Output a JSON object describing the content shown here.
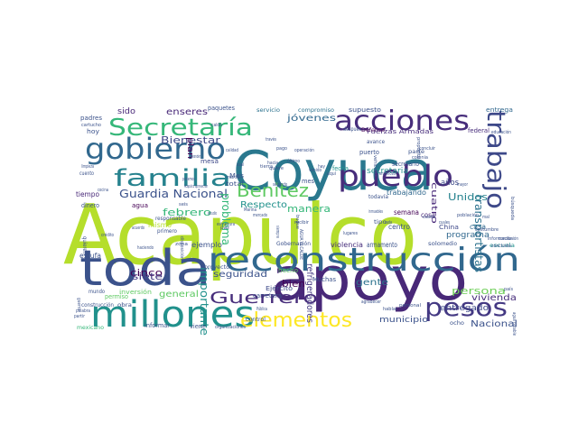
{
  "word_cloud": {
    "words": [
      {
        "text": "Acapulco",
        "color": "#b5de2b"
      },
      {
        "text": "Coyuca",
        "color": "#2a788e"
      },
      {
        "text": "apoyo",
        "color": "#482878"
      },
      {
        "text": "toda",
        "color": "#3b528b"
      },
      {
        "text": "reconstrucción",
        "color": "#31688e"
      },
      {
        "text": "millones",
        "color": "#21918c"
      },
      {
        "text": "Secretaría",
        "color": "#35b779"
      },
      {
        "text": "acciones",
        "color": "#472d7b"
      },
      {
        "text": "gobierno",
        "color": "#31688e"
      },
      {
        "text": "pueblo",
        "color": "#472d7b"
      },
      {
        "text": "familia",
        "color": "#26828e"
      },
      {
        "text": "trabajo",
        "color": "#3e4989"
      },
      {
        "text": "pesos",
        "color": "#443983"
      },
      {
        "text": "Guerrero",
        "color": "#472d7b"
      },
      {
        "text": "elementos",
        "color": "#fde725"
      },
      {
        "text": "Benitez",
        "color": "#5ec962"
      },
      {
        "text": "Guardia Nacional",
        "color": "#3b528b"
      },
      {
        "text": "Bienestar",
        "color": "#3e4989"
      },
      {
        "text": "jóvenes",
        "color": "#31688e"
      },
      {
        "text": "enseres",
        "color": "#482878"
      },
      {
        "text": "importante",
        "color": "#21918c"
      },
      {
        "text": "problema",
        "color": "#35b779"
      },
      {
        "text": "refrigeradores",
        "color": "#443983"
      },
      {
        "text": "transportistas",
        "color": "#2c728e"
      },
      {
        "text": "Respecto",
        "color": "#21918c"
      },
      {
        "text": "seguridad",
        "color": "#3b528b"
      },
      {
        "text": "persona",
        "color": "#6ece58"
      },
      {
        "text": "febrero",
        "color": "#35b779"
      },
      {
        "text": "cinco",
        "color": "#440154"
      },
      {
        "text": "siete",
        "color": "#443983"
      },
      {
        "text": "gente",
        "color": "#2c728e"
      },
      {
        "text": "bien",
        "color": "#440154"
      },
      {
        "text": "Unidos",
        "color": "#26828e"
      },
      {
        "text": "manera",
        "color": "#35b779"
      },
      {
        "text": "vivienda",
        "color": "#472d7b"
      },
      {
        "text": "Nacional",
        "color": "#3b528b"
      },
      {
        "text": "programa",
        "color": "#31688e"
      },
      {
        "text": "cuatro",
        "color": "#482878"
      },
      {
        "text": "años",
        "color": "#3e4989"
      },
      {
        "text": "secretaria",
        "color": "#21918c"
      },
      {
        "text": "general",
        "color": "#5ec962"
      },
      {
        "text": "plan",
        "color": "#440154"
      },
      {
        "text": "municipio",
        "color": "#3b528b"
      },
      {
        "text": "entregado",
        "color": "#3e4989"
      },
      {
        "text": "sido",
        "color": "#482878"
      },
      {
        "text": "paquetes",
        "color": "#3b528b"
      },
      {
        "text": "supuesto",
        "color": "#3b528b"
      },
      {
        "text": "compromiso",
        "color": "#2c728e"
      },
      {
        "text": "Fuerzas Armadas",
        "color": "#472d7b"
      },
      {
        "text": "entrega",
        "color": "#31688e"
      },
      {
        "text": "semana",
        "color": "#440154"
      },
      {
        "text": "Mes",
        "color": "#3b528b"
      },
      {
        "text": "mes",
        "color": "#3b528b"
      },
      {
        "text": "tiempo",
        "color": "#482878"
      },
      {
        "text": "agua",
        "color": "#440154"
      },
      {
        "text": "estufa",
        "color": "#3b528b"
      },
      {
        "text": "mismo",
        "color": "#b5de2b"
      },
      {
        "text": "total",
        "color": "#3b528b"
      },
      {
        "text": "mesa",
        "color": "#3e4989"
      },
      {
        "text": "armamento",
        "color": "#3b528b"
      },
      {
        "text": "violencia",
        "color": "#472d7b"
      },
      {
        "text": "casa",
        "color": "#31688e"
      },
      {
        "text": "cosa",
        "color": "#482878"
      },
      {
        "text": "centro",
        "color": "#3b528b"
      },
      {
        "text": "hecho",
        "color": "#5ec962"
      },
      {
        "text": "Muchas",
        "color": "#3b528b"
      },
      {
        "text": "carretera",
        "color": "#3b528b"
      },
      {
        "text": "Ejército",
        "color": "#3e4989"
      },
      {
        "text": "trabajando",
        "color": "#31688e"
      },
      {
        "text": "puerto",
        "color": "#3b528b"
      },
      {
        "text": "fecha",
        "color": "#21918c"
      },
      {
        "text": "secretario",
        "color": "#3b528b"
      },
      {
        "text": "Defensa",
        "color": "#440154"
      },
      {
        "text": "federal",
        "color": "#472d7b"
      },
      {
        "text": "ejemplo",
        "color": "#3b528b"
      },
      {
        "text": "padres",
        "color": "#3b528b"
      },
      {
        "text": "inversión",
        "color": "#5ec962"
      },
      {
        "text": "mundo",
        "color": "#3b528b"
      },
      {
        "text": "viene",
        "color": "#3b528b"
      },
      {
        "text": "informar",
        "color": "#3b528b"
      },
      {
        "text": "mexicano",
        "color": "#35b779"
      },
      {
        "text": "permiso",
        "color": "#5ec962"
      },
      {
        "text": "construcción",
        "color": "#3b528b"
      },
      {
        "text": "obra",
        "color": "#3b528b"
      },
      {
        "text": "control",
        "color": "#3b528b"
      },
      {
        "text": "ocho",
        "color": "#3b528b"
      },
      {
        "text": "medio",
        "color": "#3b528b"
      },
      {
        "text": "solo",
        "color": "#3b528b"
      },
      {
        "text": "Gobernación",
        "color": "#3b528b"
      },
      {
        "text": "dinero",
        "color": "#3b528b"
      },
      {
        "text": "hoy",
        "color": "#3b528b"
      },
      {
        "text": "servicio",
        "color": "#2c728e"
      },
      {
        "text": "después",
        "color": "#3b528b"
      },
      {
        "text": "China",
        "color": "#3e4989"
      },
      {
        "text": "tipo",
        "color": "#3b528b"
      },
      {
        "text": "parte",
        "color": "#3b528b"
      },
      {
        "text": "avance",
        "color": "#3b528b"
      },
      {
        "text": "último",
        "color": "#3b528b"
      },
      {
        "text": "todavía",
        "color": "#3b528b"
      },
      {
        "text": "escuela",
        "color": "#21918c"
      },
      {
        "text": "responsable",
        "color": "#3b528b"
      },
      {
        "text": "primero",
        "color": "#3b528b"
      },
      {
        "text": "quieren",
        "color": "#3b528b"
      },
      {
        "text": "cuento",
        "color": "#3b528b"
      },
      {
        "text": "proyecto",
        "color": "#3b528b"
      },
      {
        "text": "cartucho",
        "color": "#3b528b"
      },
      {
        "text": "seis",
        "color": "#3b528b"
      },
      {
        "text": "paz",
        "color": "#3b528b"
      },
      {
        "text": "marzo",
        "color": "#3b528b"
      },
      {
        "text": "pago",
        "color": "#3b528b"
      },
      {
        "text": "quiere",
        "color": "#3b528b"
      },
      {
        "text": "tierra",
        "color": "#3b528b"
      },
      {
        "text": "venido",
        "color": "#3b528b"
      },
      {
        "text": "personal",
        "color": "#3b528b"
      },
      {
        "text": "colonia",
        "color": "#3b528b"
      },
      {
        "text": "población",
        "color": "#3b528b"
      },
      {
        "text": "información",
        "color": "#3b528b"
      },
      {
        "text": "concluida",
        "color": "#3b528b"
      },
      {
        "text": "país",
        "color": "#3b528b"
      },
      {
        "text": "agradecer",
        "color": "#3b528b"
      },
      {
        "text": "hablar",
        "color": "#3b528b"
      },
      {
        "text": "palabra",
        "color": "#3b528b"
      },
      {
        "text": "partir",
        "color": "#3b528b"
      },
      {
        "text": "guerra",
        "color": "#3b528b"
      },
      {
        "text": "organizaciones",
        "color": "#3b528b"
      },
      {
        "text": "haciendo",
        "color": "#3b528b"
      },
      {
        "text": "calidad",
        "color": "#3b528b"
      },
      {
        "text": "siempre",
        "color": "#3b528b"
      },
      {
        "text": "recibir",
        "color": "#3b528b"
      },
      {
        "text": "entonces",
        "color": "#3b528b"
      },
      {
        "text": "concluir",
        "color": "#3b528b"
      },
      {
        "text": "segundo",
        "color": "#3b528b"
      },
      {
        "text": "estudio",
        "color": "#3b528b"
      },
      {
        "text": "zona",
        "color": "#3b528b"
      },
      {
        "text": "atender",
        "color": "#3b528b"
      },
      {
        "text": "hacia",
        "color": "#3b528b"
      },
      {
        "text": "costo",
        "color": "#3b528b"
      },
      {
        "text": "Marina",
        "color": "#3b528b"
      },
      {
        "text": "Pública",
        "color": "#3b528b"
      },
      {
        "text": "conclusión",
        "color": "#3b528b"
      },
      {
        "text": "buque",
        "color": "#3b528b"
      },
      {
        "text": "inmuebles",
        "color": "#3b528b"
      },
      {
        "text": "caldo",
        "color": "#3b528b"
      },
      {
        "text": "través",
        "color": "#3b528b"
      },
      {
        "text": "cuales",
        "color": "#3b528b"
      },
      {
        "text": "AGUA ALCALDE",
        "color": "#3b528b"
      },
      {
        "text": "cada",
        "color": "#3b528b"
      },
      {
        "text": "operación",
        "color": "#3b528b"
      },
      {
        "text": "vehículos",
        "color": "#3b528b"
      },
      {
        "text": "mayor",
        "color": "#3b528b"
      },
      {
        "text": "educación",
        "color": "#3b528b"
      },
      {
        "text": "costumbre",
        "color": "#3b528b"
      },
      {
        "text": "mal",
        "color": "#3b528b"
      },
      {
        "text": "cual",
        "color": "#3b528b"
      },
      {
        "text": "propósito",
        "color": "#3b528b"
      },
      {
        "text": "lugares",
        "color": "#3b528b"
      },
      {
        "text": "acuerdo",
        "color": "#3b528b"
      },
      {
        "text": "estructura",
        "color": "#3b528b"
      },
      {
        "text": "mercado",
        "color": "#3b528b"
      },
      {
        "text": "Acapulco aprovechar",
        "color": "#3b528b"
      },
      {
        "text": "hay",
        "color": "#3b528b"
      },
      {
        "text": "aquí",
        "color": "#3b528b"
      },
      {
        "text": "podemos",
        "color": "#3b528b"
      },
      {
        "text": "crédito",
        "color": "#3b528b"
      },
      {
        "text": "limpieza",
        "color": "#3b528b"
      },
      {
        "text": "cocina",
        "color": "#3b528b"
      },
      {
        "text": "disposición",
        "color": "#3b528b"
      },
      {
        "text": "búsqueda",
        "color": "#3b528b"
      },
      {
        "text": "agua potable",
        "color": "#3b528b"
      }
    ]
  }
}
